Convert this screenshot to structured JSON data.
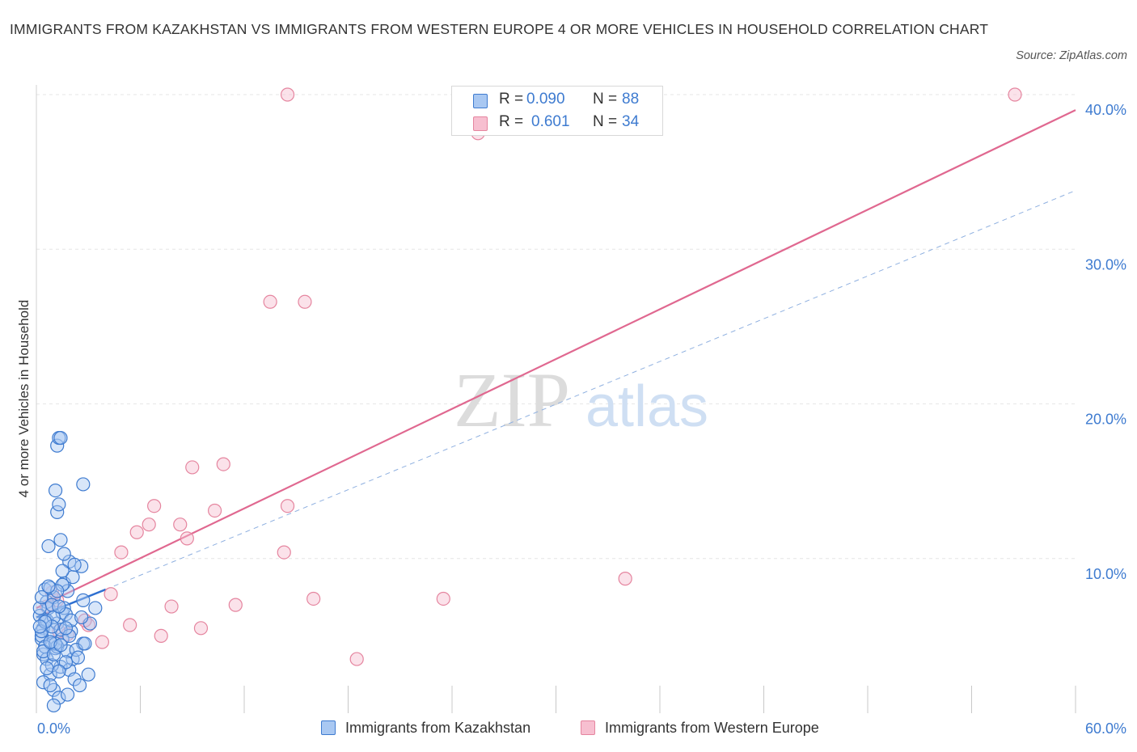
{
  "title": "IMMIGRANTS FROM KAZAKHSTAN VS IMMIGRANTS FROM WESTERN EUROPE 4 OR MORE VEHICLES IN HOUSEHOLD CORRELATION CHART",
  "source": "Source: ZipAtlas.com",
  "watermark": {
    "zip": "ZIP",
    "atlas": "atlas"
  },
  "legend": {
    "r_label": "R =",
    "n_label": "N =",
    "kazakhstan": {
      "r": "0.090",
      "n": "88"
    },
    "western_europe": {
      "r": "0.601",
      "n": "34"
    }
  },
  "colors": {
    "kazakhstan_fill": "#a9c8f2",
    "kazakhstan_stroke": "#3e7bd0",
    "kazakhstan_line": "#2e6fd0",
    "western_europe_fill": "#f7bfd0",
    "western_europe_stroke": "#e5859f",
    "western_europe_line": "#e06890",
    "dashed_line": "#8fb0e0",
    "grid": "#e6e6e6",
    "tick_label": "#3e7bd0"
  },
  "chart_data": {
    "type": "scatter",
    "title": "IMMIGRANTS FROM KAZAKHSTAN VS IMMIGRANTS FROM WESTERN EUROPE 4 OR MORE VEHICLES IN HOUSEHOLD CORRELATION CHART",
    "xlabel": "",
    "ylabel": "4 or more Vehicles in Household",
    "xlim": [
      0,
      60
    ],
    "ylim": [
      0,
      40
    ],
    "x_tick_labels": [
      "0.0%",
      "60.0%"
    ],
    "y_ticks": [
      10,
      20,
      30,
      40
    ],
    "y_tick_labels": [
      "10.0%",
      "20.0%",
      "30.0%",
      "40.0%"
    ],
    "grid": true,
    "legend_position": "top-center",
    "series": [
      {
        "name": "Immigrants from Kazakhstan",
        "r": 0.09,
        "n": 88,
        "points": [
          [
            0.4,
            5.5
          ],
          [
            0.5,
            6.0
          ],
          [
            0.3,
            4.8
          ],
          [
            0.6,
            7.2
          ],
          [
            0.8,
            5.2
          ],
          [
            0.4,
            3.8
          ],
          [
            0.7,
            6.8
          ],
          [
            1.0,
            7.5
          ],
          [
            0.2,
            6.3
          ],
          [
            0.9,
            4.5
          ],
          [
            1.2,
            5.8
          ],
          [
            0.5,
            8.0
          ],
          [
            1.5,
            6.5
          ],
          [
            0.3,
            5.0
          ],
          [
            1.1,
            4.2
          ],
          [
            0.6,
            3.5
          ],
          [
            1.4,
            3.0
          ],
          [
            0.8,
            2.5
          ],
          [
            1.9,
            2.8
          ],
          [
            0.4,
            2.0
          ],
          [
            1.0,
            1.5
          ],
          [
            1.3,
            1.0
          ],
          [
            1.0,
            0.5
          ],
          [
            2.2,
            2.2
          ],
          [
            2.1,
            3.5
          ],
          [
            2.5,
            1.8
          ],
          [
            3.0,
            2.5
          ],
          [
            2.7,
            4.5
          ],
          [
            3.1,
            5.8
          ],
          [
            3.4,
            6.8
          ],
          [
            2.7,
            7.3
          ],
          [
            2.6,
            9.5
          ],
          [
            1.9,
            9.8
          ],
          [
            1.6,
            10.3
          ],
          [
            0.7,
            10.8
          ],
          [
            1.4,
            11.2
          ],
          [
            1.2,
            13.0
          ],
          [
            1.1,
            14.4
          ],
          [
            1.2,
            17.3
          ],
          [
            1.3,
            17.8
          ],
          [
            1.4,
            17.8
          ],
          [
            1.3,
            13.5
          ],
          [
            2.7,
            14.8
          ],
          [
            1.6,
            8.4
          ],
          [
            2.1,
            8.8
          ],
          [
            2.2,
            9.6
          ],
          [
            1.8,
            7.9
          ],
          [
            1.5,
            8.3
          ],
          [
            0.8,
            8.1
          ],
          [
            0.9,
            7.0
          ],
          [
            1.6,
            6.8
          ],
          [
            1.7,
            6.4
          ],
          [
            2.0,
            5.3
          ],
          [
            1.5,
            4.8
          ],
          [
            1.2,
            4.3
          ],
          [
            1.8,
            4.0
          ],
          [
            2.3,
            4.1
          ],
          [
            2.8,
            4.5
          ],
          [
            2.4,
            3.6
          ],
          [
            0.9,
            3.1
          ],
          [
            1.7,
            3.3
          ],
          [
            0.6,
            2.9
          ],
          [
            1.3,
            2.7
          ],
          [
            0.8,
            1.8
          ],
          [
            1.8,
            1.2
          ],
          [
            0.5,
            4.3
          ],
          [
            0.3,
            5.3
          ],
          [
            0.2,
            6.8
          ],
          [
            0.6,
            6.0
          ],
          [
            1.0,
            6.2
          ],
          [
            1.4,
            5.4
          ],
          [
            0.9,
            5.6
          ],
          [
            1.2,
            7.9
          ],
          [
            0.7,
            8.2
          ],
          [
            1.5,
            9.2
          ],
          [
            2.0,
            6.0
          ],
          [
            1.1,
            4.5
          ],
          [
            0.4,
            4.0
          ],
          [
            1.9,
            5.0
          ],
          [
            2.6,
            6.2
          ],
          [
            0.3,
            7.5
          ],
          [
            1.3,
            6.9
          ],
          [
            1.7,
            5.5
          ],
          [
            0.5,
            5.9
          ],
          [
            1.0,
            3.8
          ],
          [
            0.8,
            4.6
          ],
          [
            1.4,
            4.4
          ],
          [
            0.2,
            5.6
          ]
        ],
        "trend": {
          "x0": 0,
          "y0": 6.2,
          "x1": 4.0,
          "y1": 8.0,
          "extended_x1": 60,
          "extended_y1": 33.8
        }
      },
      {
        "name": "Immigrants from Western Europe",
        "r": 0.601,
        "n": 34,
        "points": [
          [
            14.5,
            40.0
          ],
          [
            56.5,
            40.0
          ],
          [
            25.5,
            37.5
          ],
          [
            13.5,
            26.6
          ],
          [
            15.5,
            26.6
          ],
          [
            9.0,
            15.9
          ],
          [
            10.8,
            16.1
          ],
          [
            6.8,
            13.4
          ],
          [
            10.3,
            13.1
          ],
          [
            14.5,
            13.4
          ],
          [
            6.5,
            12.2
          ],
          [
            5.8,
            11.7
          ],
          [
            8.3,
            12.2
          ],
          [
            8.7,
            11.3
          ],
          [
            4.9,
            10.4
          ],
          [
            14.3,
            10.4
          ],
          [
            34.0,
            8.7
          ],
          [
            4.3,
            7.7
          ],
          [
            7.8,
            6.9
          ],
          [
            11.5,
            7.0
          ],
          [
            16.0,
            7.4
          ],
          [
            23.5,
            7.4
          ],
          [
            5.4,
            5.7
          ],
          [
            9.5,
            5.5
          ],
          [
            7.2,
            5.0
          ],
          [
            3.0,
            5.7
          ],
          [
            2.8,
            6.0
          ],
          [
            3.8,
            4.6
          ],
          [
            18.5,
            3.5
          ],
          [
            1.2,
            7.3
          ],
          [
            0.6,
            6.9
          ],
          [
            1.3,
            5.3
          ],
          [
            1.8,
            5.1
          ],
          [
            0.9,
            7.8
          ]
        ],
        "trend": {
          "x0": 0,
          "y0": 6.8,
          "x1": 60,
          "y1": 39.0
        }
      }
    ]
  },
  "bottom_legend": {
    "kazakhstan": "Immigrants from Kazakhstan",
    "western_europe": "Immigrants from Western Europe"
  }
}
